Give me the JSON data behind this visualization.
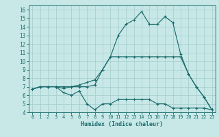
{
  "background_color": "#c8e8e8",
  "grid_color": "#a8d0d0",
  "line_color": "#1a6b6b",
  "xlabel": "Humidex (Indice chaleur)",
  "xlim": [
    -0.5,
    23.5
  ],
  "ylim": [
    4,
    16.5
  ],
  "xticks": [
    0,
    1,
    2,
    3,
    4,
    5,
    6,
    7,
    8,
    9,
    10,
    11,
    12,
    13,
    14,
    15,
    16,
    17,
    18,
    19,
    20,
    21,
    22,
    23
  ],
  "yticks": [
    4,
    5,
    6,
    7,
    8,
    9,
    10,
    11,
    12,
    13,
    14,
    15,
    16
  ],
  "series": [
    [
      6.7,
      7.0,
      7.0,
      7.0,
      6.3,
      6.0,
      6.5,
      5.0,
      4.3,
      5.0,
      5.0,
      5.5,
      5.5,
      5.5,
      5.5,
      5.5,
      5.0,
      5.0,
      4.5,
      4.5,
      4.5,
      4.5,
      4.5,
      4.3
    ],
    [
      6.7,
      7.0,
      7.0,
      7.0,
      6.8,
      7.0,
      7.0,
      7.0,
      7.2,
      9.0,
      10.5,
      10.5,
      10.5,
      10.5,
      10.5,
      10.5,
      10.5,
      10.5,
      10.5,
      10.5,
      8.5,
      7.0,
      5.8,
      4.3
    ],
    [
      6.7,
      7.0,
      7.0,
      7.0,
      7.0,
      7.0,
      7.2,
      7.5,
      7.8,
      9.0,
      10.5,
      13.0,
      14.3,
      14.8,
      15.8,
      14.3,
      14.3,
      15.2,
      14.5,
      10.8,
      8.5,
      7.0,
      5.8,
      4.3
    ]
  ]
}
